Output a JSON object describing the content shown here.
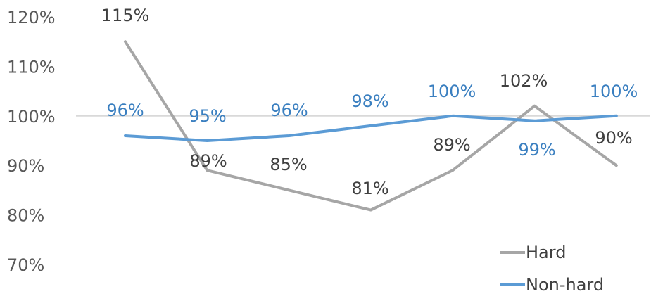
{
  "chart_data": {
    "type": "line",
    "categories": [
      "",
      "",
      "",
      "",
      "",
      "",
      ""
    ],
    "ylim": [
      70,
      120
    ],
    "yticks": [
      120,
      110,
      100,
      90,
      80,
      70
    ],
    "ytick_labels": [
      "120%",
      "110%",
      "100%",
      "90%",
      "80%",
      "70%"
    ],
    "reference_line": 100,
    "series": [
      {
        "name": "Hard",
        "color": "#a6a6a6",
        "values": [
          115,
          89,
          85,
          81,
          89,
          102,
          90
        ],
        "labels": [
          "115%",
          "89%",
          "85%",
          "81%",
          "89%",
          "102%",
          "90%"
        ]
      },
      {
        "name": "Non-hard",
        "color": "#5b9bd5",
        "values": [
          96,
          95,
          96,
          98,
          100,
          99,
          100
        ],
        "labels": [
          "96%",
          "95%",
          "96%",
          "98%",
          "100%",
          "99%",
          "100%"
        ]
      }
    ],
    "legend": {
      "position": "bottom-right",
      "entries": [
        "Hard",
        "Non-hard"
      ]
    },
    "grid": false
  }
}
